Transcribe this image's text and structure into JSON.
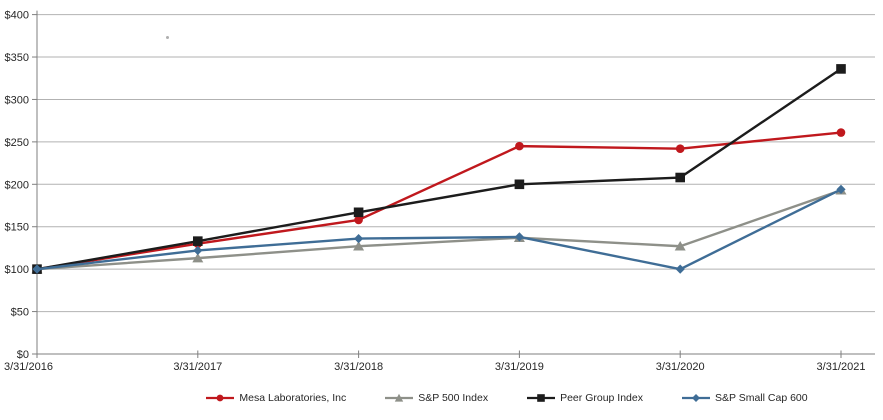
{
  "chart_data": {
    "type": "line",
    "title": "",
    "xlabel": "",
    "ylabel": "",
    "ylim": [
      0,
      400
    ],
    "y_tick_step": 50,
    "y_tick_labels": [
      "$0",
      "$50",
      "$100",
      "$150",
      "$200",
      "$250",
      "$300",
      "$350",
      "$400"
    ],
    "grid": "horizontal",
    "legend_position": "bottom-center",
    "categories": [
      "3/31/2016",
      "3/31/2017",
      "3/31/2018",
      "3/31/2019",
      "3/31/2020",
      "3/31/2021"
    ],
    "series": [
      {
        "name": "Mesa Laboratories, Inc",
        "marker": "circle",
        "color": "#c0181d",
        "values": [
          100,
          130,
          158,
          245,
          242,
          261
        ]
      },
      {
        "name": "S&P 500 Index",
        "marker": "triangle",
        "color": "#8e9089",
        "values": [
          100,
          113,
          127,
          137,
          127,
          193
        ]
      },
      {
        "name": "Peer Group Index",
        "marker": "square",
        "color": "#1c1c1c",
        "values": [
          100,
          133,
          167,
          200,
          208,
          336
        ]
      },
      {
        "name": "S&P Small Cap 600",
        "marker": "diamond",
        "color": "#3f6d96",
        "values": [
          100,
          122,
          136,
          138,
          100,
          194
        ]
      }
    ],
    "colors": {
      "gridline": "#b2b2b2",
      "axis": "#7f7f7f",
      "text": "#262626"
    }
  }
}
